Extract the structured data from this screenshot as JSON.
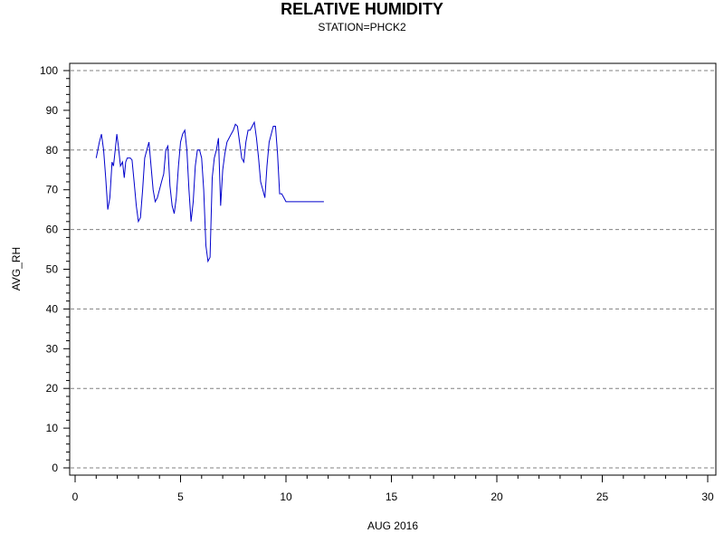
{
  "chart_data": {
    "type": "line",
    "title": "RELATIVE HUMIDITY",
    "subtitle": "STATION=PHCK2",
    "xlabel": "AUG 2016",
    "ylabel": "AVG_RH",
    "xlim": [
      0,
      30
    ],
    "ylim": [
      0,
      100
    ],
    "x_ticks": [
      "0",
      "5",
      "10",
      "15",
      "20",
      "25",
      "30"
    ],
    "y_ticks": [
      "0",
      "10",
      "20",
      "30",
      "40",
      "50",
      "60",
      "70",
      "80",
      "90",
      "100"
    ],
    "grid": "horizontal dashed at 0, 20, 40, 60, 80, 100",
    "line_color": "#0000cc",
    "grid_color": "#808080",
    "series": [
      {
        "x": [
          1.0,
          1.15,
          1.25,
          1.35,
          1.45,
          1.55,
          1.65,
          1.75,
          1.82,
          1.9,
          1.98,
          2.05,
          2.15,
          2.25,
          2.33,
          2.4,
          2.47,
          2.55,
          2.62,
          2.7,
          2.8,
          2.9,
          3.0,
          3.1,
          3.2,
          3.3,
          3.4,
          3.5,
          3.6,
          3.7,
          3.8,
          3.9,
          4.0,
          4.1,
          4.2,
          4.3,
          4.4,
          4.5,
          4.6,
          4.7,
          4.8,
          4.9,
          5.0,
          5.1,
          5.2,
          5.3,
          5.4,
          5.5,
          5.6,
          5.7,
          5.8,
          5.9,
          6.0,
          6.1,
          6.2,
          6.3,
          6.4,
          6.5,
          6.6,
          6.7,
          6.8,
          6.9,
          7.0,
          7.1,
          7.2,
          7.3,
          7.4,
          7.5,
          7.6,
          7.7,
          7.8,
          7.9,
          8.0,
          8.1,
          8.2,
          8.3,
          8.4,
          8.5,
          8.6,
          8.7,
          8.8,
          8.9,
          9.0,
          9.1,
          9.2,
          9.3,
          9.4,
          9.5,
          9.6,
          9.7,
          9.8,
          9.9,
          10.0,
          10.1,
          10.2,
          10.3,
          10.4,
          10.5,
          10.6,
          10.7,
          10.8,
          10.9,
          11.0,
          11.1,
          11.2,
          11.3,
          11.4,
          11.5,
          11.6,
          11.7,
          11.8
        ],
        "y": [
          78,
          82,
          84,
          80,
          73,
          65,
          68,
          77,
          76,
          80,
          84,
          81,
          76,
          77,
          73,
          77,
          78,
          78,
          78,
          77.5,
          72,
          66,
          62,
          63,
          70,
          78,
          80,
          82,
          76,
          70,
          67,
          68,
          70,
          72,
          74,
          80,
          81,
          71,
          66,
          64,
          68,
          76,
          82,
          84,
          85,
          80,
          70,
          62,
          67,
          76,
          80,
          80,
          78,
          70,
          56,
          52,
          53,
          73,
          78,
          80,
          83,
          66,
          75,
          79,
          82,
          83,
          84,
          85,
          86.5,
          86,
          82,
          78,
          77,
          82,
          85,
          85,
          86,
          87,
          83,
          78,
          72,
          70,
          68,
          76,
          82,
          84,
          86,
          86,
          79,
          69,
          69,
          68,
          67,
          67,
          67,
          67,
          67,
          67,
          67,
          67,
          67,
          67,
          67,
          67,
          67,
          67,
          67,
          67,
          67,
          67,
          67
        ]
      }
    ]
  }
}
